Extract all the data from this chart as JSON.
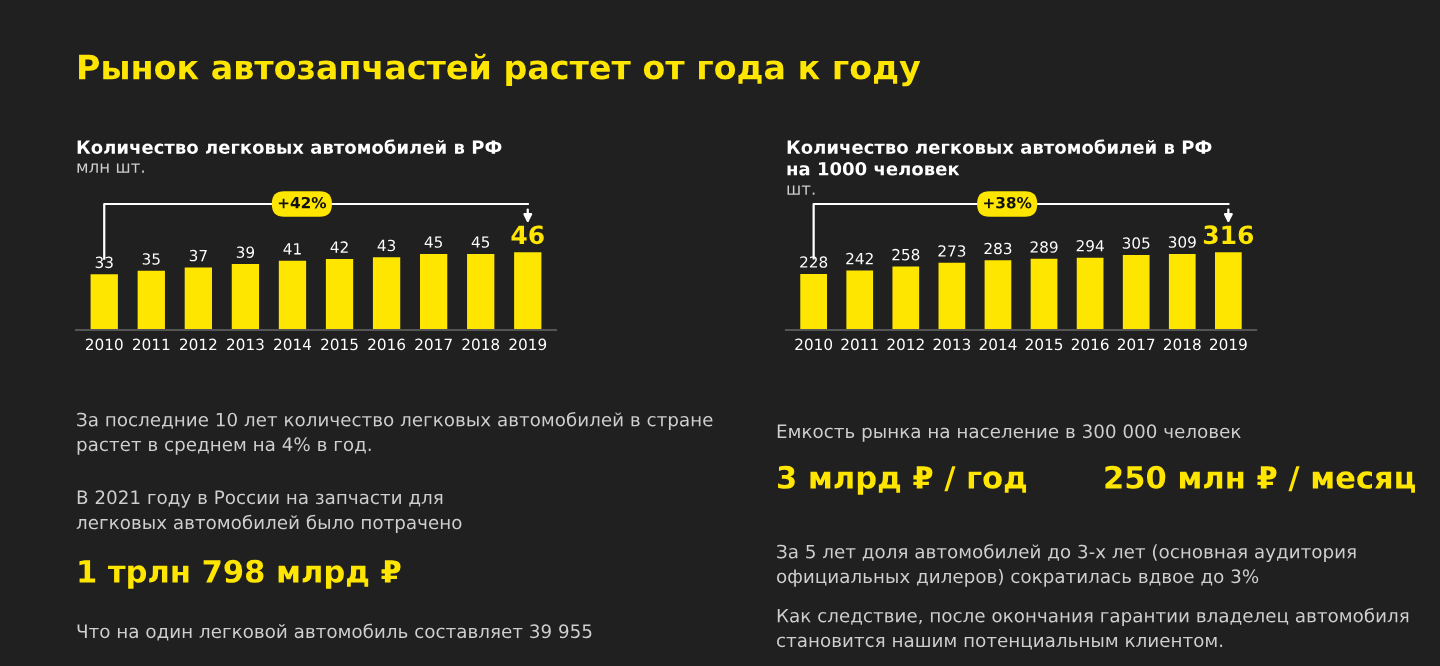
{
  "chart_data": [
    {
      "type": "other",
      "title": "Рынок автозапчастей растет от года к году"
    },
    {
      "type": "bar",
      "title": "Количество легковых автомобилей в РФ",
      "subtitle": "млн шт.",
      "categories": [
        "2010",
        "2011",
        "2012",
        "2013",
        "2014",
        "2015",
        "2016",
        "2017",
        "2018",
        "2019"
      ],
      "values": [
        33,
        35,
        37,
        39,
        41,
        42,
        43,
        45,
        45,
        46
      ],
      "color": "#ffe600",
      "data_labels": true,
      "annotations": [
        "+42%"
      ]
    },
    {
      "type": "bar",
      "title": "Количество легковых автомобилей в РФ\nна 1000 человек",
      "subtitle": "шт.",
      "categories": [
        "2010",
        "2011",
        "2012",
        "2013",
        "2014",
        "2015",
        "2016",
        "2017",
        "2018",
        "2019"
      ],
      "values": [
        228,
        242,
        258,
        273,
        283,
        289,
        294,
        305,
        309,
        316
      ],
      "color": "#ffe600",
      "data_labels": true,
      "annotations": [
        "+38%"
      ]
    },
    {
      "type": "other",
      "annotations": [
        {
          "text": "За последние 10 лет количество легковых автомобилей в стране\nрастет в среднем на 4% в год."
        },
        {
          "text": "В 2021 году в России на запчасти для\nлегковых автомобилей было потрачено"
        },
        {
          "text": "1 трлн 798 млрд ₽"
        },
        {
          "text": "Что на один легковой автомобиль составляет 39 955"
        }
      ]
    },
    {
      "type": "other",
      "annotations": [
        {
          "text": "Емкость рынка на население в 300 000 человек"
        },
        {
          "text": "3 млрд ₽ / год"
        },
        {
          "text": "250 млн ₽ / месяц"
        },
        {
          "text": "За 5 лет доля автомобилей до 3-х лет (основная аудитория\nофициальных дилеров) сократилась вдвое до 3%"
        },
        {
          "text": "Как следствие, после окончания гарантии владелец автомобиля\nстановится нашим потенциальным клиентом."
        }
      ]
    }
  ]
}
